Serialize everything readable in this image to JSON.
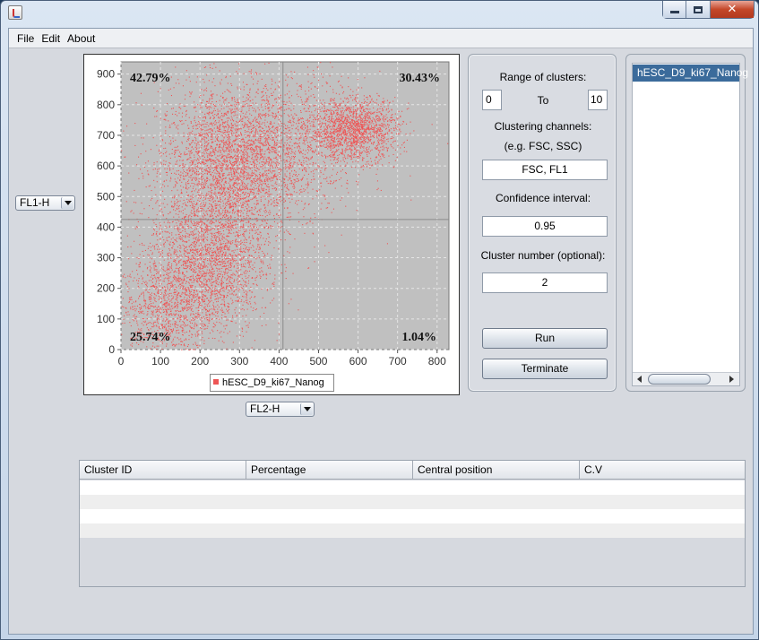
{
  "window": {
    "title": "",
    "icon": "java-icon"
  },
  "menu": [
    "File",
    "Edit",
    "About"
  ],
  "y_channel": {
    "selected": "FL1-H"
  },
  "x_channel": {
    "selected": "FL2-H"
  },
  "chart_data": {
    "type": "scatter",
    "series": [
      {
        "name": "hESC_D9_ki67_Nanog",
        "color": "#ee5555"
      }
    ],
    "x_ticks": [
      0,
      100,
      200,
      300,
      400,
      500,
      600,
      700,
      800
    ],
    "y_ticks": [
      0,
      100,
      200,
      300,
      400,
      500,
      600,
      700,
      800,
      900
    ],
    "xlim": [
      0,
      830
    ],
    "ylim": [
      0,
      940
    ],
    "gate": {
      "x": 410,
      "y": 425
    },
    "quadrants": {
      "upper_left": "42.79%",
      "upper_right": "30.43%",
      "lower_left": "25.74%",
      "lower_right": "1.04%"
    },
    "clusters": [
      {
        "cx": 270,
        "cy": 600,
        "sx": 90,
        "sy": 130,
        "n": 3200
      },
      {
        "cx": 590,
        "cy": 720,
        "sx": 55,
        "sy": 50,
        "n": 1600
      },
      {
        "cx": 220,
        "cy": 280,
        "sx": 75,
        "sy": 110,
        "n": 2200
      },
      {
        "cx": 110,
        "cy": 130,
        "sx": 60,
        "sy": 85,
        "n": 900
      },
      {
        "cx": 430,
        "cy": 680,
        "sx": 95,
        "sy": 110,
        "n": 1100
      }
    ],
    "grid": true
  },
  "settings": {
    "range_label": "Range of clusters:",
    "range_from": "0",
    "range_to_label": "To",
    "range_to": "10",
    "channels_label": "Clustering channels:",
    "channels_hint": "(e.g. FSC, SSC)",
    "channels_value": "FSC, FL1",
    "confidence_label": "Confidence interval:",
    "confidence_value": "0.95",
    "cluster_number_label": "Cluster number (optional):",
    "cluster_number_value": "2",
    "run_label": "Run",
    "terminate_label": "Terminate"
  },
  "files": [
    "hESC_D9_ki67_Nanog"
  ],
  "table": {
    "columns": [
      "Cluster ID",
      "Percentage",
      "Central position",
      "C.V"
    ],
    "rows": []
  }
}
